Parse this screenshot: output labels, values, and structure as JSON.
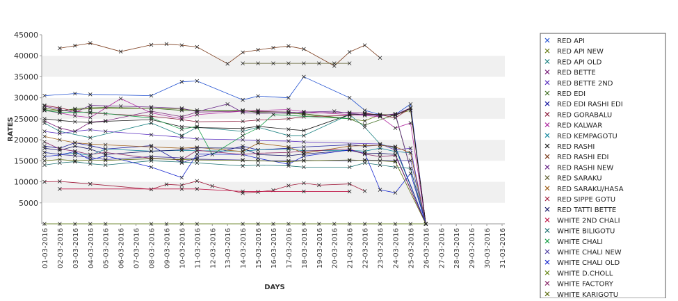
{
  "chart_data": {
    "type": "line",
    "title": "",
    "xlabel": "DAYS",
    "ylabel": "RATES",
    "ylim": [
      0,
      45000
    ],
    "yticks": [
      5000,
      10000,
      15000,
      20000,
      25000,
      30000,
      35000,
      40000,
      45000
    ],
    "grid": "alternating horizontal bands",
    "legend_position": "right",
    "categories": [
      "01-03-2016",
      "02-03-2016",
      "03-03-2016",
      "04-03-2016",
      "05-03-2016",
      "06-03-2016",
      "07-03-2016",
      "08-03-2016",
      "09-03-2016",
      "10-03-2016",
      "11-03-2016",
      "12-03-2016",
      "13-03-2016",
      "14-03-2016",
      "15-03-2016",
      "16-03-2016",
      "17-03-2016",
      "18-03-2016",
      "19-03-2016",
      "20-03-2016",
      "21-03-2016",
      "22-03-2016",
      "23-03-2016",
      "24-03-2016",
      "25-03-2016",
      "26-03-2016",
      "27-03-2016",
      "28-03-2016",
      "29-03-2016",
      "30-03-2016",
      "31-03-2016"
    ],
    "series": [
      {
        "name": "RED API",
        "color": "#1f4fd0",
        "values": [
          30500,
          null,
          31000,
          30800,
          null,
          null,
          null,
          30500,
          null,
          33800,
          34000,
          null,
          null,
          29500,
          30400,
          null,
          30000,
          35000,
          null,
          null,
          30000,
          27000,
          26000,
          26000,
          28500,
          0,
          null,
          null,
          null,
          null,
          null
        ]
      },
      {
        "name": "RED API NEW",
        "color": "#6b7f1e",
        "values": [
          27500,
          27000,
          27200,
          27400,
          null,
          null,
          null,
          27500,
          null,
          27300,
          27000,
          null,
          null,
          27000,
          26800,
          null,
          26600,
          26000,
          null,
          null,
          25000,
          24500,
          26000,
          26000,
          27000,
          0,
          null,
          null,
          null,
          null,
          null
        ]
      },
      {
        "name": "RED API OLD",
        "color": "#1a8080",
        "values": [
          24000,
          22000,
          null,
          20500,
          null,
          null,
          null,
          24000,
          null,
          21000,
          23000,
          null,
          null,
          22000,
          23000,
          null,
          21000,
          21000,
          null,
          null,
          26000,
          23000,
          19000,
          18000,
          null,
          0,
          null,
          null,
          null,
          null,
          null
        ]
      },
      {
        "name": "RED BETTE",
        "color": "#7a1f7a",
        "values": [
          24500,
          22800,
          22000,
          24200,
          24500,
          null,
          null,
          26800,
          null,
          25500,
          26600,
          null,
          null,
          26800,
          26700,
          null,
          26600,
          26400,
          null,
          null,
          26500,
          26400,
          25800,
          26000,
          27600,
          0,
          null,
          null,
          null,
          null,
          null
        ]
      },
      {
        "name": "RED BETTE 2ND",
        "color": "#5a2fc0",
        "values": [
          22000,
          21500,
          22000,
          22400,
          22000,
          null,
          null,
          21200,
          null,
          20600,
          20200,
          null,
          null,
          20000,
          19800,
          null,
          19700,
          19500,
          null,
          null,
          null,
          null,
          19000,
          17600,
          18000,
          0,
          null,
          null,
          null,
          null,
          null
        ]
      },
      {
        "name": "RED EDI",
        "color": "#3a6a1a",
        "values": [
          27200,
          26800,
          27400,
          27600,
          27700,
          null,
          null,
          27500,
          null,
          27000,
          27000,
          null,
          null,
          27000,
          26500,
          null,
          26300,
          26200,
          null,
          null,
          25000,
          23500,
          null,
          26000,
          null,
          0,
          null,
          null,
          null,
          null,
          null
        ]
      },
      {
        "name": "RED EDI RASHI EDI",
        "color": "#1a1aa0",
        "values": [
          18500,
          18000,
          19300,
          18600,
          17800,
          null,
          null,
          18600,
          null,
          14500,
          15800,
          null,
          null,
          18500,
          17600,
          null,
          18000,
          18300,
          null,
          null,
          18800,
          18500,
          18700,
          18400,
          null,
          0,
          null,
          null,
          null,
          null,
          null
        ]
      },
      {
        "name": "RED GORABALU",
        "color": "#8a1a3a",
        "values": [
          28200,
          27600,
          26800,
          26400,
          26200,
          null,
          null,
          25600,
          null,
          24800,
          24300,
          null,
          null,
          24400,
          24700,
          null,
          25000,
          25500,
          null,
          null,
          25800,
          26200,
          26000,
          25200,
          27600,
          0,
          null,
          null,
          null,
          null,
          null
        ]
      },
      {
        "name": "RED KALWAR",
        "color": "#b02aa0",
        "values": [
          27000,
          26400,
          25700,
          25300,
          null,
          29800,
          null,
          26400,
          null,
          25000,
          26000,
          null,
          null,
          26800,
          27000,
          null,
          27200,
          26700,
          null,
          null,
          26000,
          25800,
          25500,
          22800,
          24000,
          0,
          null,
          null,
          null,
          null,
          null
        ]
      },
      {
        "name": "RED KEMPAGOTU",
        "color": "#1a8aa0",
        "values": [
          17000,
          16500,
          16800,
          16300,
          17800,
          null,
          null,
          17300,
          null,
          17500,
          17400,
          null,
          null,
          17300,
          17600,
          null,
          17800,
          17400,
          null,
          null,
          17500,
          17300,
          18000,
          17200,
          16900,
          0,
          null,
          null,
          null,
          null,
          null
        ]
      },
      {
        "name": "RED RASHI",
        "color": "#111111",
        "values": [
          25000,
          24600,
          24300,
          24100,
          24400,
          null,
          null,
          24800,
          null,
          23100,
          22900,
          null,
          null,
          22700,
          23200,
          null,
          22500,
          22200,
          null,
          null,
          26000,
          26100,
          26000,
          25800,
          27500,
          0,
          null,
          null,
          null,
          null,
          null
        ]
      },
      {
        "name": "RED RASHI EDI",
        "color": "#7a3a1a",
        "values": [
          null,
          41800,
          42400,
          43000,
          null,
          41000,
          null,
          42600,
          42800,
          42500,
          42100,
          null,
          38100,
          40800,
          41400,
          41900,
          42300,
          41600,
          null,
          37600,
          40900,
          42500,
          39500,
          null,
          null,
          null,
          null,
          null,
          null,
          null,
          null
        ]
      },
      {
        "name": "RED RASHI NEW",
        "color": "#6a2a8a",
        "values": [
          28000,
          27200,
          26500,
          28200,
          null,
          28000,
          null,
          27800,
          null,
          27500,
          26700,
          null,
          28500,
          26500,
          26300,
          null,
          26400,
          26600,
          null,
          26800,
          26300,
          26000,
          25700,
          26200,
          null,
          0,
          null,
          null,
          null,
          null,
          null
        ]
      },
      {
        "name": "RED SARAKU",
        "color": "#5a5a2a",
        "values": [
          null,
          null,
          null,
          null,
          null,
          null,
          null,
          null,
          null,
          null,
          null,
          null,
          null,
          38200,
          38200,
          38200,
          38200,
          38200,
          38200,
          38200,
          38200,
          null,
          null,
          null,
          null,
          null,
          null,
          null,
          null,
          null,
          null
        ]
      },
      {
        "name": "RED SARAKU/HASA",
        "color": "#a0601a",
        "values": [
          20800,
          20000,
          19300,
          19000,
          18800,
          null,
          null,
          18300,
          null,
          18000,
          18200,
          null,
          null,
          17200,
          19200,
          null,
          18300,
          16800,
          null,
          null,
          18500,
          18600,
          18700,
          18300,
          16900,
          0,
          null,
          null,
          null,
          null,
          null
        ]
      },
      {
        "name": "RED SIPPE GOTU",
        "color": "#a01a3a",
        "values": [
          10000,
          10100,
          null,
          9500,
          null,
          null,
          null,
          8200,
          9400,
          9200,
          10200,
          9000,
          null,
          7300,
          7600,
          8000,
          9100,
          9700,
          9200,
          null,
          9500,
          7800,
          null,
          null,
          null,
          null,
          null,
          null,
          null,
          null,
          null
        ]
      },
      {
        "name": "RED TATTI BETTE",
        "color": "#1a1a6a",
        "values": [
          18000,
          17500,
          18500,
          17800,
          16500,
          null,
          null,
          17300,
          null,
          17600,
          18100,
          null,
          null,
          18000,
          16500,
          null,
          16200,
          16600,
          null,
          null,
          17500,
          16700,
          16800,
          16500,
          null,
          0,
          null,
          null,
          null,
          null,
          null
        ]
      },
      {
        "name": "WHITE 2ND CHALI",
        "color": "#c01a4a",
        "values": [
          null,
          8300,
          null,
          null,
          null,
          null,
          null,
          null,
          null,
          8300,
          8300,
          null,
          null,
          7700,
          null,
          null,
          null,
          7700,
          null,
          null,
          7700,
          null,
          null,
          null,
          null,
          null,
          null,
          null,
          null,
          null,
          null
        ]
      },
      {
        "name": "WHITE BILIGOTU",
        "color": "#1a7070",
        "values": [
          14000,
          14500,
          14800,
          14300,
          14000,
          null,
          null,
          15000,
          null,
          14700,
          14500,
          null,
          null,
          13800,
          14000,
          null,
          13800,
          13500,
          null,
          null,
          13500,
          14500,
          14000,
          13500,
          13200,
          0,
          null,
          null,
          null,
          null,
          null
        ]
      },
      {
        "name": "WHITE CHALI",
        "color": "#1aa04a",
        "values": [
          27000,
          26500,
          null,
          26600,
          null,
          null,
          null,
          25200,
          null,
          22500,
          23200,
          16500,
          null,
          21000,
          22800,
          26000,
          null,
          null,
          null,
          null,
          25000,
          null,
          null,
          null,
          null,
          null,
          null,
          null,
          null,
          null,
          null
        ]
      },
      {
        "name": "WHITE CHALI NEW",
        "color": "#4a3aa0",
        "values": [
          17000,
          16500,
          16200,
          15800,
          15300,
          null,
          null,
          16000,
          null,
          15700,
          15400,
          null,
          null,
          15200,
          15000,
          null,
          15000,
          15100,
          null,
          null,
          15000,
          15200,
          null,
          15000,
          15100,
          0,
          null,
          null,
          null,
          null,
          null
        ]
      },
      {
        "name": "WHITE CHALI OLD",
        "color": "#1a2ad0",
        "values": [
          16000,
          16400,
          17200,
          15200,
          16200,
          null,
          null,
          13500,
          null,
          11000,
          16600,
          null,
          null,
          16500,
          15600,
          null,
          14200,
          16100,
          null,
          null,
          17600,
          16800,
          8100,
          7400,
          12000,
          0,
          null,
          null,
          null,
          null,
          null
        ]
      },
      {
        "name": "WHITE D.CHOLL",
        "color": "#6a8a1a",
        "values": [
          0,
          0,
          0,
          0,
          0,
          null,
          null,
          0,
          0,
          0,
          0,
          null,
          null,
          0,
          0,
          0,
          0,
          0,
          0,
          0,
          0,
          0,
          0,
          0,
          0,
          0,
          null,
          null,
          null,
          null,
          null
        ]
      },
      {
        "name": "WHITE FACTORY",
        "color": "#8a2a6a",
        "values": [
          19500,
          17800,
          17300,
          16500,
          17000,
          null,
          null,
          15600,
          null,
          15200,
          17500,
          null,
          null,
          16500,
          16800,
          null,
          17000,
          17300,
          null,
          null,
          17800,
          16600,
          16000,
          16300,
          null,
          0,
          null,
          null,
          null,
          null,
          null
        ]
      },
      {
        "name": "WHITE KARIGOTU",
        "color": "#5a6a0a",
        "values": [
          15000,
          15300,
          15000,
          15200,
          15100,
          null,
          null,
          15500,
          null,
          15300,
          15200,
          null,
          null,
          15100,
          15000,
          null,
          14800,
          15000,
          null,
          null,
          15200,
          15100,
          15000,
          14800,
          null,
          0,
          null,
          null,
          null,
          null,
          null
        ]
      }
    ]
  }
}
